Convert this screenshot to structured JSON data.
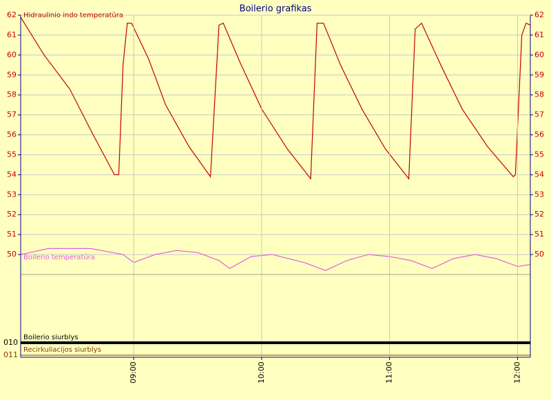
{
  "chart_data": [
    {
      "type": "line",
      "title": "Boilerio grafikas",
      "xlim": [
        "08:07",
        "12:06"
      ],
      "ylim": [
        49,
        62
      ],
      "yticks": [
        50,
        51,
        52,
        53,
        54,
        55,
        56,
        57,
        58,
        59,
        60,
        61,
        62
      ],
      "grid": true,
      "series": [
        {
          "name": "Hidraulinio indo temperatūra",
          "color": "#c00000",
          "x": [
            "08:07",
            "08:18",
            "08:30",
            "08:41",
            "08:51",
            "08:53",
            "08:55",
            "08:57",
            "08:59",
            "09:07",
            "09:15",
            "09:26",
            "09:36",
            "09:40",
            "09:42",
            "09:50",
            "10:00",
            "10:12",
            "10:23",
            "10:26",
            "10:29",
            "10:37",
            "10:47",
            "10:58",
            "11:09",
            "11:12",
            "11:15",
            "11:24",
            "11:34",
            "11:46",
            "11:58",
            "11:59",
            "12:02",
            "12:04",
            "12:06"
          ],
          "values": [
            61.9,
            60.0,
            58.3,
            56.0,
            54.0,
            54.0,
            59.5,
            61.6,
            61.6,
            59.8,
            57.5,
            55.4,
            53.9,
            61.5,
            61.6,
            59.6,
            57.3,
            55.3,
            53.8,
            61.6,
            61.6,
            59.5,
            57.3,
            55.3,
            53.8,
            61.3,
            61.6,
            59.5,
            57.3,
            55.4,
            53.9,
            54.0,
            61.0,
            61.6,
            61.5
          ]
        },
        {
          "name": "Boilerio temperatūra",
          "color": "#e060e0",
          "x": [
            "08:07",
            "08:20",
            "08:40",
            "08:55",
            "09:00",
            "09:10",
            "09:20",
            "09:30",
            "09:40",
            "09:45",
            "09:55",
            "10:05",
            "10:20",
            "10:30",
            "10:40",
            "10:50",
            "11:00",
            "11:10",
            "11:20",
            "11:30",
            "11:40",
            "11:50",
            "12:00",
            "12:06"
          ],
          "values": [
            50.0,
            50.3,
            50.3,
            50.0,
            49.6,
            50.0,
            50.2,
            50.1,
            49.7,
            49.3,
            49.9,
            50.0,
            49.6,
            49.2,
            49.7,
            50.0,
            49.9,
            49.7,
            49.3,
            49.8,
            50.0,
            49.8,
            49.4,
            49.5
          ]
        }
      ]
    },
    {
      "type": "digital",
      "xlim": [
        "08:07",
        "12:06"
      ],
      "xticks": [
        "09:00",
        "10:00",
        "11:00",
        "12:00"
      ],
      "series": [
        {
          "name": "Boilerio siurblys",
          "channel": "010",
          "color": "#000000",
          "x": [
            "08:07",
            "12:06"
          ],
          "values": [
            1,
            1
          ]
        },
        {
          "name": "Recirkuliacijos siurblys",
          "channel": "011",
          "color": "#804000",
          "x": [
            "08:07",
            "12:06"
          ],
          "values": [
            0,
            0
          ]
        }
      ]
    }
  ]
}
